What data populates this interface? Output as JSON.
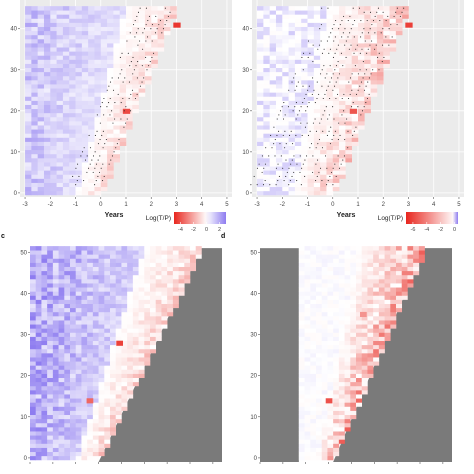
{
  "chart_data": [
    {
      "type": "heatmap",
      "panel": "a",
      "panel_label": "",
      "xlabel": "Years",
      "ylabel": "",
      "xlim": [
        -3.2,
        5.2
      ],
      "ylim": [
        -1,
        47
      ],
      "x_ticks": [
        -3,
        -2,
        -1,
        0,
        1,
        2,
        3,
        4,
        5
      ],
      "y_ticks": [
        0,
        10,
        20,
        30,
        40
      ],
      "legend_title": "Log(T/P)",
      "legend_ticks": [
        -4,
        -2,
        0,
        2
      ],
      "legend_range": [
        -5,
        3
      ],
      "legend_position": "bottom-right",
      "grid": true,
      "dots": true,
      "boundary_x_bottom": 0.0,
      "boundary_x_top": 3.0,
      "hotspots": [
        {
          "x": 3.0,
          "y": 41,
          "value": -4.6
        },
        {
          "x": 1.0,
          "y": 20,
          "value": -4.2
        }
      ]
    },
    {
      "type": "heatmap",
      "panel": "b",
      "panel_label": "",
      "xlabel": "Years",
      "ylabel": "",
      "xlim": [
        -3.2,
        5.2
      ],
      "ylim": [
        -1,
        47
      ],
      "x_ticks": [
        -3,
        -2,
        -1,
        0,
        1,
        2,
        3,
        4,
        5
      ],
      "y_ticks": [
        0,
        10,
        20,
        30,
        40
      ],
      "legend_title": "Log(T/P)",
      "legend_ticks": [
        -6,
        -4,
        -2,
        0
      ],
      "legend_range": [
        -7,
        0.5
      ],
      "legend_position": "bottom-right",
      "grid": true,
      "dots": true,
      "boundary_x_bottom": 0.0,
      "boundary_x_top": 3.0,
      "hotspots": [
        {
          "x": 3.0,
          "y": 41,
          "value": -6.2
        },
        {
          "x": 0.8,
          "y": 20,
          "value": -5.5
        }
      ]
    },
    {
      "type": "heatmap",
      "panel": "c",
      "panel_label": "c",
      "xlabel": "",
      "ylabel": "",
      "xlim": [
        0,
        8.4
      ],
      "ylim": [
        -1,
        52.5
      ],
      "x_ticks": [
        0,
        1,
        2,
        3,
        4,
        5,
        6,
        7,
        8
      ],
      "y_ticks": [
        0,
        10,
        20,
        30,
        40,
        50
      ],
      "grid": false,
      "masked_region": "grey lower-right triangle",
      "boundary_x_bottom": 3.0,
      "boundary_x_top": 7.5,
      "hotspots": [
        {
          "x": 3.9,
          "y": 28,
          "value": -3.5
        },
        {
          "x": 2.6,
          "y": 14,
          "value": -2.8
        }
      ]
    },
    {
      "type": "heatmap",
      "panel": "d",
      "panel_label": "d",
      "xlabel": "",
      "ylabel": "",
      "xlim": [
        0,
        8.4
      ],
      "ylim": [
        -1,
        52.5
      ],
      "x_ticks": [
        0,
        1,
        2,
        3,
        4,
        5,
        6,
        7,
        8
      ],
      "y_ticks": [
        0,
        10,
        20,
        30,
        40,
        50
      ],
      "grid": false,
      "masked_region": "grey left band and lower-right triangle",
      "masked_band_x": [
        0,
        1.7
      ],
      "boundary_x_bottom": 3.2,
      "boundary_x_top": 7.2,
      "hotspots": [
        {
          "x": 3.0,
          "y": 14,
          "value": -3.2
        },
        {
          "x": 4.5,
          "y": 35,
          "value": -2.0
        }
      ]
    }
  ]
}
